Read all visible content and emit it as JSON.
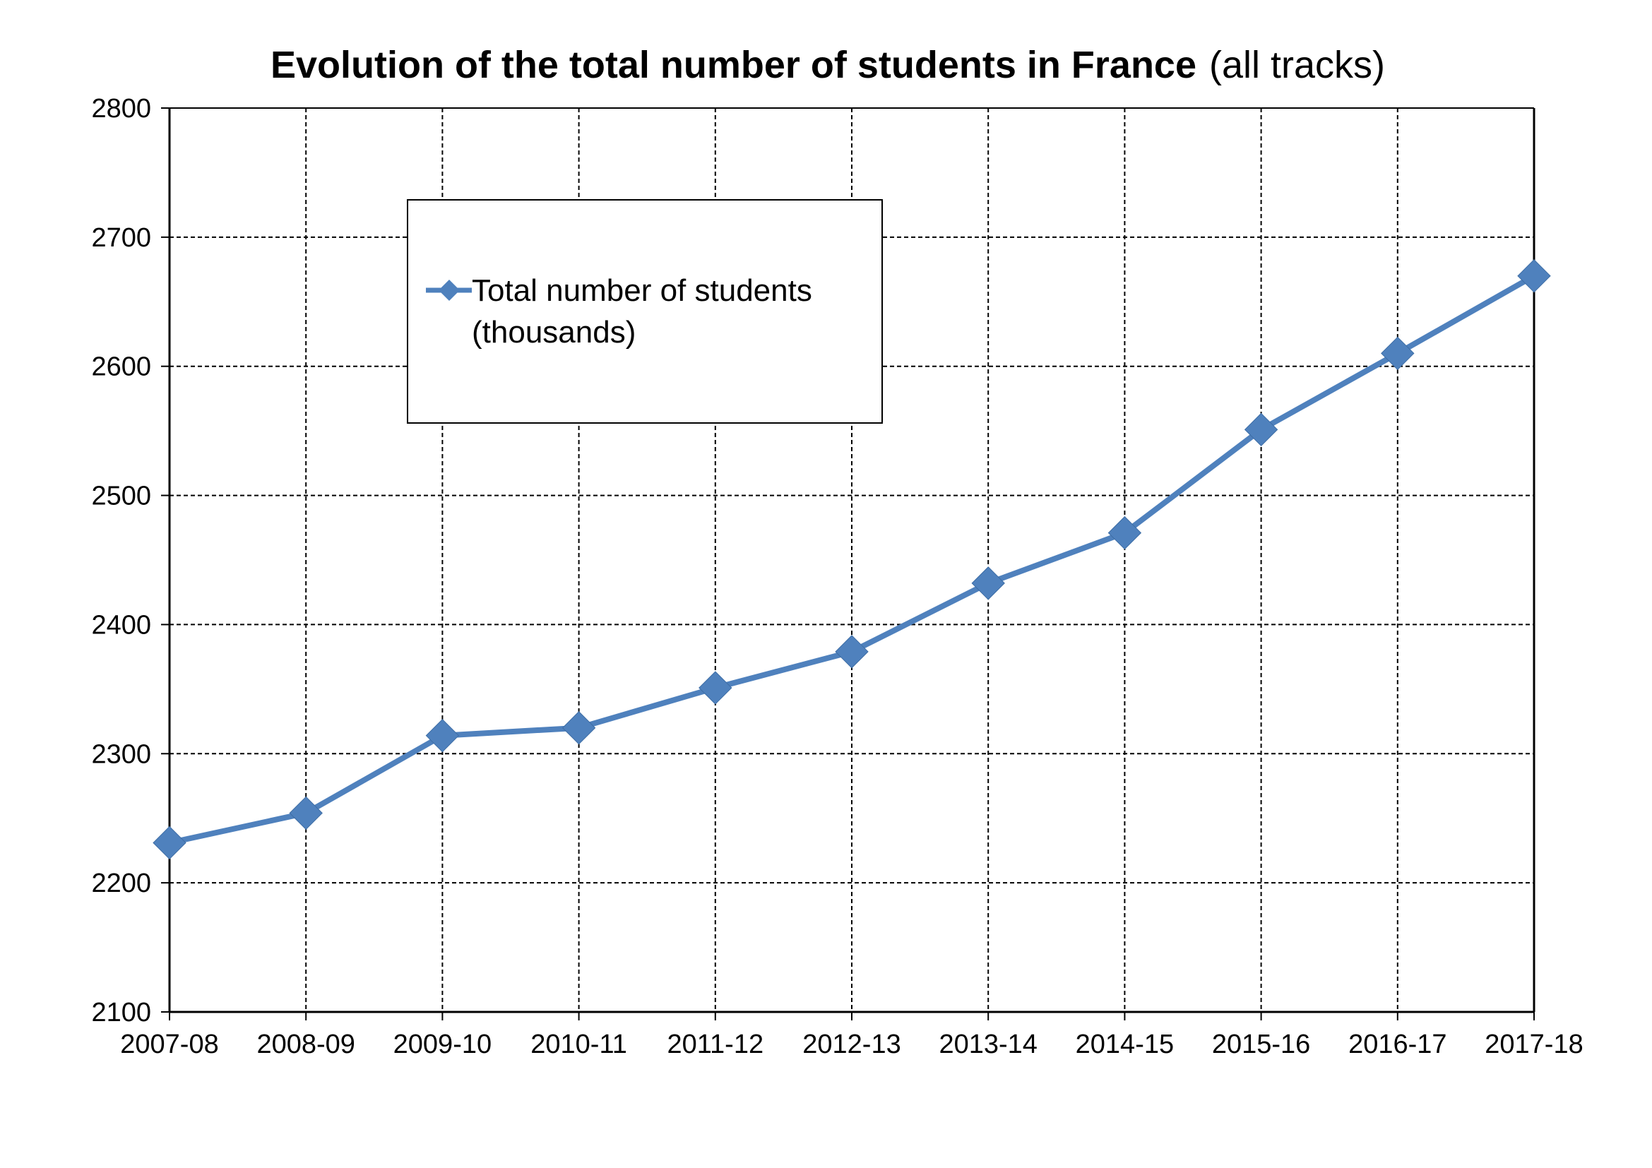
{
  "chart_data": {
    "type": "line",
    "title": "Evolution of the total number of students in France",
    "subtitle": "(all tracks)",
    "xlabel": "",
    "ylabel": "",
    "categories": [
      "2007-08",
      "2008-09",
      "2009-10",
      "2010-11",
      "2011-12",
      "2012-13",
      "2013-14",
      "2014-15",
      "2015-16",
      "2016-17",
      "2017-18"
    ],
    "series": [
      {
        "name": "Total number of students (thousands)",
        "legend_lines": [
          "Total number of students",
          "(thousands)"
        ],
        "values": [
          2231,
          2254,
          2314,
          2320,
          2351,
          2379,
          2432,
          2471,
          2551,
          2610,
          2670
        ],
        "color": "#4F81BD",
        "marker": "diamond"
      }
    ],
    "ylim": [
      2100,
      2800
    ],
    "yticks": [
      2100,
      2200,
      2300,
      2400,
      2500,
      2600,
      2700,
      2800
    ],
    "grid": "dashed",
    "legend_position": "top-left"
  }
}
